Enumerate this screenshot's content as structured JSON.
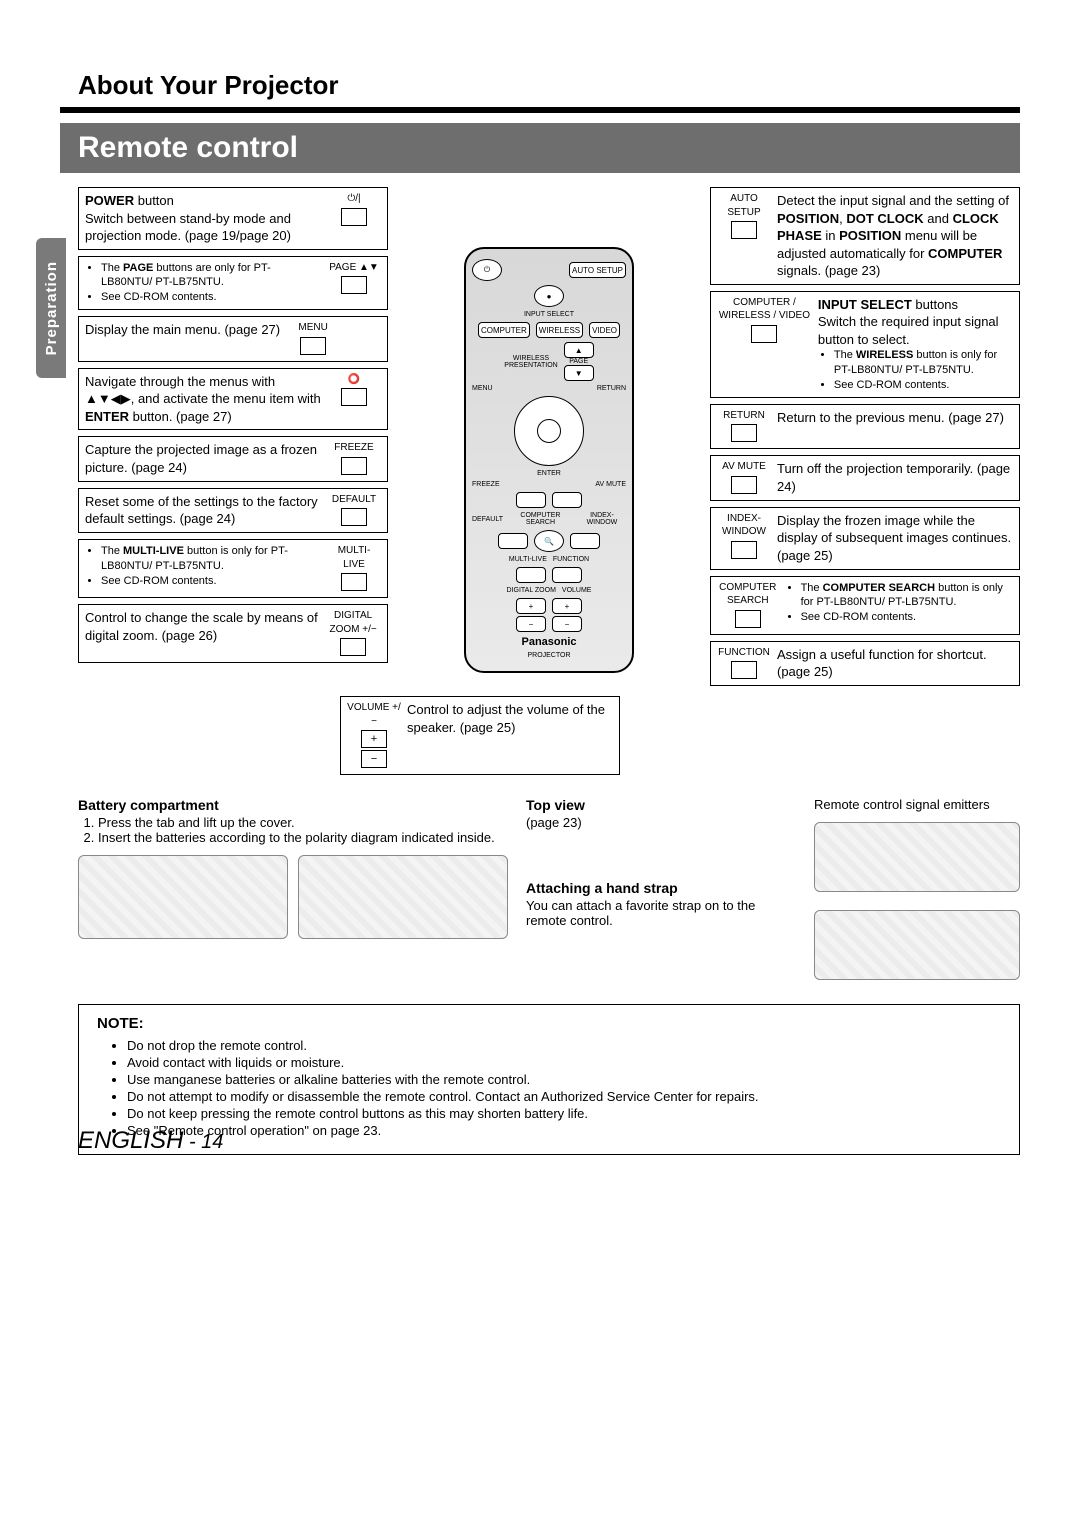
{
  "page": {
    "side_tab": "Preparation",
    "section_title": "About Your Projector",
    "subheader": "Remote control",
    "footer_lang": "ENGLISH",
    "footer_page": "14"
  },
  "left_callouts": [
    {
      "label": "⏻/|",
      "title_html": "<b>POWER</b> button",
      "body": "Switch between stand-by mode and projection mode. (page 19/page 20)"
    },
    {
      "label": "PAGE ▲▼",
      "bullets": [
        "The <b>PAGE</b> buttons are only for PT-LB80NTU/ PT-LB75NTU.",
        "See CD-ROM contents."
      ]
    },
    {
      "label": "MENU",
      "body": "Display the main menu. (page 27)"
    },
    {
      "label": "⭕",
      "body_html": "Navigate through the menus with ▲▼◀▶, and activate the menu item with <b>ENTER</b> button. (page 27)"
    },
    {
      "label": "FREEZE",
      "body": "Capture the projected image as a frozen picture. (page 24)"
    },
    {
      "label": "DEFAULT",
      "body": "Reset some of the settings to the factory default settings. (page 24)"
    },
    {
      "label": "MULTI-LIVE",
      "bullets": [
        "The <b>MULTI-LIVE</b> button is only for PT-LB80NTU/ PT-LB75NTU.",
        "See CD-ROM contents."
      ]
    },
    {
      "label": "DIGITAL ZOOM +/−",
      "body": "Control to change the scale by means of digital zoom. (page 26)"
    }
  ],
  "right_callouts": [
    {
      "label": "AUTO SETUP",
      "body_html": "Detect the input signal and the setting of <b>POSITION</b>, <b>DOT CLOCK</b> and <b>CLOCK PHASE</b> in <b>POSITION</b> menu will be adjusted automatically for <b>COMPUTER</b> signals. (page 23)"
    },
    {
      "label": "COMPUTER / WIRELESS / VIDEO",
      "title_html": "<b>INPUT SELECT</b> buttons",
      "body": "Switch the required input signal button to select.",
      "bullets": [
        "The <b>WIRELESS</b> button is only for PT-LB80NTU/ PT-LB75NTU.",
        "See CD-ROM contents."
      ]
    },
    {
      "label": "RETURN",
      "body": "Return to the previous menu. (page 27)"
    },
    {
      "label": "AV MUTE",
      "body": "Turn off the projection temporarily. (page 24)"
    },
    {
      "label": "INDEX-WINDOW",
      "body": "Display the frozen image while the display of subsequent images continues. (page 25)"
    },
    {
      "label": "COMPUTER SEARCH",
      "bullets": [
        "The <b>COMPUTER SEARCH</b> button is only for PT-LB80NTU/ PT-LB75NTU.",
        "See CD-ROM contents."
      ]
    },
    {
      "label": "FUNCTION",
      "body": "Assign a useful function for shortcut. (page 25)"
    }
  ],
  "center_callout": {
    "label": "VOLUME +/−",
    "body": "Control to adjust the volume of the speaker. (page 25)"
  },
  "remote": {
    "auto_setup": "AUTO SETUP",
    "input_select": "INPUT SELECT",
    "computer": "COMPUTER",
    "wireless": "WIRELESS",
    "video": "VIDEO",
    "presentation": "PRESENTATION",
    "page": "PAGE",
    "menu": "MENU",
    "return": "RETURN",
    "enter": "ENTER",
    "freeze": "FREEZE",
    "avmute": "AV MUTE",
    "default": "DEFAULT",
    "compsearch": "COMPUTER SEARCH",
    "indexwin": "INDEX-WINDOW",
    "multilive": "MULTI-LIVE",
    "function": "FUNCTION",
    "digitalzoom": "DIGITAL ZOOM",
    "volume": "VOLUME",
    "brand": "Panasonic",
    "projector": "PROJECTOR"
  },
  "bottom": {
    "battery_title": "Battery compartment",
    "battery_steps": [
      "Press the tab and lift up the cover.",
      "Insert the batteries according to the polarity diagram indicated inside."
    ],
    "topview_title": "Top view",
    "topview_body": "(page 23)",
    "emitters": "Remote control signal emitters",
    "strap_title": "Attaching a hand strap",
    "strap_body": "You can attach a favorite strap on to the remote control."
  },
  "note": {
    "title": "NOTE:",
    "items": [
      "Do not drop the remote control.",
      "Avoid contact with liquids or moisture.",
      "Use manganese batteries or alkaline batteries with the remote control.",
      "Do not attempt to modify or disassemble the remote control. Contact an Authorized Service Center for repairs.",
      "Do not keep pressing the remote control buttons as this may shorten battery life.",
      "See \"Remote control operation\" on page 23."
    ]
  }
}
